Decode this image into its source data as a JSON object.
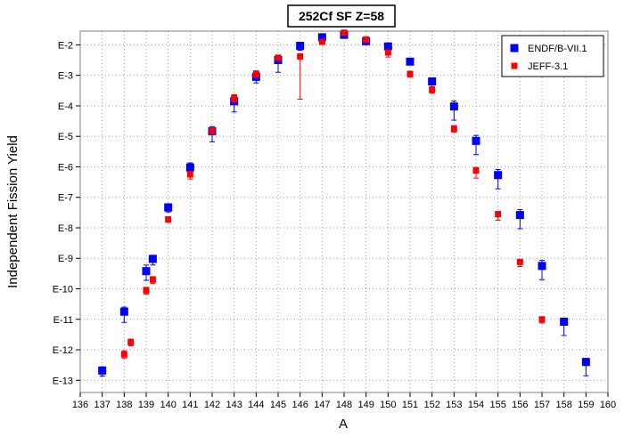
{
  "chart_data": {
    "type": "scatter",
    "title": "252Cf SF Z=58",
    "xlabel": "A",
    "ylabel": "Independent Fission Yield",
    "xlim": [
      136,
      160
    ],
    "ylog": true,
    "ylim_log10": [
      -13.4,
      -1.55
    ],
    "x_ticks": [
      136,
      137,
      138,
      139,
      140,
      141,
      142,
      143,
      144,
      145,
      146,
      147,
      148,
      149,
      150,
      151,
      152,
      153,
      154,
      155,
      156,
      157,
      158,
      159,
      160
    ],
    "y_ticks": [
      {
        "exp": -2,
        "label": "E-2"
      },
      {
        "exp": -3,
        "label": "E-3"
      },
      {
        "exp": -4,
        "label": "E-4"
      },
      {
        "exp": -5,
        "label": "E-5"
      },
      {
        "exp": -6,
        "label": "E-6"
      },
      {
        "exp": -7,
        "label": "E-7"
      },
      {
        "exp": -8,
        "label": "E-8"
      },
      {
        "exp": -9,
        "label": "E-9"
      },
      {
        "exp": -10,
        "label": "E-10"
      },
      {
        "exp": -11,
        "label": "E-11"
      },
      {
        "exp": -12,
        "label": "E-12"
      },
      {
        "exp": -13,
        "label": "E-13"
      }
    ],
    "grid": true,
    "legend_position": "top-right",
    "series": [
      {
        "name": "ENDF/B-VII.1",
        "color": "#0000ff",
        "marker": "square",
        "points": [
          {
            "x": 137,
            "log10y": -12.68,
            "err_lo": 0.18,
            "err_hi": 0.12
          },
          {
            "x": 138,
            "log10y": -10.75,
            "err_lo": 0.35,
            "err_hi": 0.15
          },
          {
            "x": 139,
            "log10y": -9.42,
            "err_lo": 0.3,
            "err_hi": 0.2
          },
          {
            "x": 139.3,
            "log10y": -9.02,
            "err_lo": 0.2,
            "err_hi": 0.12
          },
          {
            "x": 140,
            "log10y": -7.33,
            "err_lo": 0.15,
            "err_hi": 0.12
          },
          {
            "x": 141,
            "log10y": -6.02,
            "err_lo": 0.2,
            "err_hi": 0.15
          },
          {
            "x": 142,
            "log10y": -4.83,
            "err_lo": 0.35,
            "err_hi": 0.15
          },
          {
            "x": 143,
            "log10y": -3.85,
            "err_lo": 0.35,
            "err_hi": 0.2
          },
          {
            "x": 144,
            "log10y": -3.05,
            "err_lo": 0.2,
            "err_hi": 0.12
          },
          {
            "x": 145,
            "log10y": -2.5,
            "err_lo": 0.4,
            "err_hi": 0.15
          },
          {
            "x": 146,
            "log10y": -2.03,
            "err_lo": 0.15,
            "err_hi": 0.08
          },
          {
            "x": 147,
            "log10y": -1.75,
            "err_lo": 0.1,
            "err_hi": 0.06
          },
          {
            "x": 148,
            "log10y": -1.67,
            "err_lo": 0.1,
            "err_hi": 0.06
          },
          {
            "x": 149,
            "log10y": -1.88,
            "err_lo": 0.1,
            "err_hi": 0.06
          },
          {
            "x": 150,
            "log10y": -2.05,
            "err_lo": 0.15,
            "err_hi": 0.1
          },
          {
            "x": 151,
            "log10y": -2.55,
            "err_lo": 0.1,
            "err_hi": 0.08
          },
          {
            "x": 152,
            "log10y": -3.2,
            "err_lo": 0.3,
            "err_hi": 0.12
          },
          {
            "x": 153,
            "log10y": -4.02,
            "err_lo": 0.45,
            "err_hi": 0.18
          },
          {
            "x": 154,
            "log10y": -5.15,
            "err_lo": 0.45,
            "err_hi": 0.18
          },
          {
            "x": 155,
            "log10y": -6.27,
            "err_lo": 0.45,
            "err_hi": 0.18
          },
          {
            "x": 156,
            "log10y": -7.58,
            "err_lo": 0.45,
            "err_hi": 0.18
          },
          {
            "x": 157,
            "log10y": -9.25,
            "err_lo": 0.45,
            "err_hi": 0.18
          },
          {
            "x": 158,
            "log10y": -11.08,
            "err_lo": 0.45,
            "err_hi": 0.12
          },
          {
            "x": 159,
            "log10y": -12.4,
            "err_lo": 0.45,
            "err_hi": 0.12
          }
        ]
      },
      {
        "name": "JEFF-3.1",
        "color": "#ff0000",
        "marker": "square",
        "points": [
          {
            "x": 138,
            "log10y": -12.15,
            "err_lo": 0.12,
            "err_hi": 0.12
          },
          {
            "x": 138.3,
            "log10y": -11.75,
            "err_lo": 0.12,
            "err_hi": 0.1
          },
          {
            "x": 139,
            "log10y": -10.05,
            "err_lo": 0.12,
            "err_hi": 0.1
          },
          {
            "x": 139.3,
            "log10y": -9.7,
            "err_lo": 0.12,
            "err_hi": 0.1
          },
          {
            "x": 140,
            "log10y": -7.72,
            "err_lo": 0.1,
            "err_hi": 0.08
          },
          {
            "x": 141,
            "log10y": -6.25,
            "err_lo": 0.15,
            "err_hi": 0.1
          },
          {
            "x": 142,
            "log10y": -4.82,
            "err_lo": 0.1,
            "err_hi": 0.1
          },
          {
            "x": 143,
            "log10y": -3.75,
            "err_lo": 0.12,
            "err_hi": 0.12
          },
          {
            "x": 144,
            "log10y": -2.95,
            "err_lo": 0.12,
            "err_hi": 0.1
          },
          {
            "x": 145,
            "log10y": -2.42,
            "err_lo": 0.1,
            "err_hi": 0.08
          },
          {
            "x": 146,
            "log10y": -2.38,
            "err_lo": 1.4,
            "err_hi": 0.05
          },
          {
            "x": 147,
            "log10y": -1.9,
            "err_lo": 0.08,
            "err_hi": 0.05
          },
          {
            "x": 148,
            "log10y": -1.6,
            "err_lo": 0.05,
            "err_hi": 0.03
          },
          {
            "x": 149,
            "log10y": -1.82,
            "err_lo": 0.1,
            "err_hi": 0.05
          },
          {
            "x": 150,
            "log10y": -2.25,
            "err_lo": 0.15,
            "err_hi": 0.08
          },
          {
            "x": 151,
            "log10y": -2.95,
            "err_lo": 0.1,
            "err_hi": 0.08
          },
          {
            "x": 152,
            "log10y": -3.47,
            "err_lo": 0.12,
            "err_hi": 0.1
          },
          {
            "x": 153,
            "log10y": -4.75,
            "err_lo": 0.12,
            "err_hi": 0.1
          },
          {
            "x": 154,
            "log10y": -6.12,
            "err_lo": 0.25,
            "err_hi": 0.1
          },
          {
            "x": 155,
            "log10y": -7.55,
            "err_lo": 0.2,
            "err_hi": 0.08
          },
          {
            "x": 156,
            "log10y": -9.12,
            "err_lo": 0.15,
            "err_hi": 0.08
          },
          {
            "x": 157,
            "log10y": -11.0,
            "err_lo": 0.12,
            "err_hi": 0.08
          }
        ]
      }
    ]
  }
}
